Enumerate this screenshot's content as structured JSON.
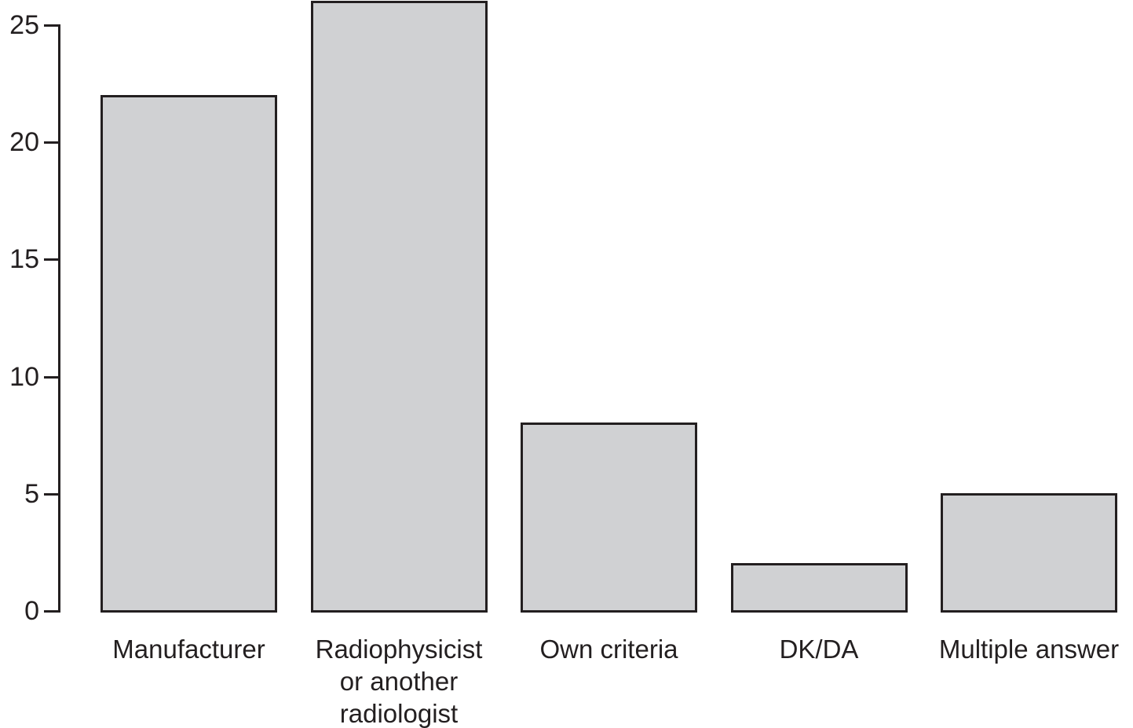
{
  "chart_data": {
    "type": "bar",
    "title": "",
    "xlabel": "",
    "ylabel": "",
    "categories": [
      "Manufacturer",
      "Radiophysicist or another radiologist",
      "Own criteria",
      "DK/DA",
      "Multiple answer"
    ],
    "category_lines": [
      [
        "Manufacturer"
      ],
      [
        "Radiophysicist",
        "or another",
        "radiologist"
      ],
      [
        "Own criteria"
      ],
      [
        "DK/DA"
      ],
      [
        "Multiple answer"
      ]
    ],
    "values": [
      22,
      26,
      8,
      2,
      5
    ],
    "yticks": [
      0,
      5,
      10,
      15,
      20,
      25
    ],
    "ytick_labels": [
      "0",
      "5",
      "10",
      "15",
      "20",
      "25"
    ],
    "ylim": [
      0,
      26
    ],
    "grid": false,
    "legend_position": "none",
    "bar_fill_color": "#d0d1d3",
    "bar_border_color": "#231f20",
    "axis_color": "#231f20",
    "text_color": "#231f20"
  }
}
